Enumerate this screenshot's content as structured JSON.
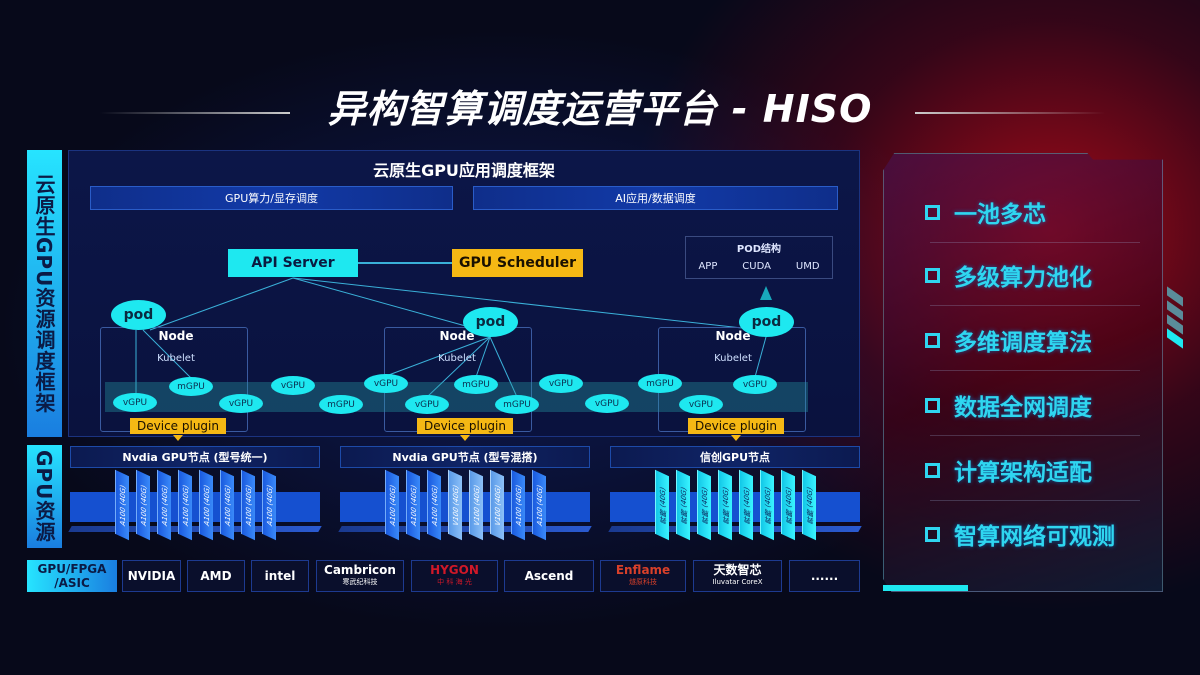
{
  "title": "异构智算调度运营平台 - HISO",
  "side_labels": {
    "framework": "云原生GPU资源调度框架",
    "gpu": "GPU资源",
    "vendor": "GPU/FPGA /ASIC"
  },
  "framework": {
    "title": "云原生GPU应用调度框架",
    "bars": [
      "GPU算力/显存调度",
      "AI应用/数据调度"
    ]
  },
  "diagram": {
    "api_server": "API Server",
    "gpu_scheduler": "GPU Scheduler",
    "pod_structure": {
      "title": "POD结构",
      "items": [
        "APP",
        "CUDA",
        "UMD"
      ]
    },
    "pod": "pod",
    "node": "Node",
    "kubelet": "Kubelet",
    "device_plugin": "Device plugin",
    "gpus": [
      "vGPU",
      "mGPU",
      "vGPU",
      "vGPU",
      "mGPU",
      "vGPU",
      "vGPU",
      "mGPU",
      "mGPU",
      "vGPU",
      "vGPU",
      "mGPU",
      "vGPU",
      "vGPU"
    ]
  },
  "gpu_nodes": [
    {
      "title": "Nvdia GPU节点 (型号统一)",
      "cards": [
        "A100 (40G)",
        "A100 (40G)",
        "A100 (40G)",
        "A100 (40G)",
        "A100 (40G)",
        "A100 (40G)",
        "A100 (40G)",
        "A100 (40G)"
      ]
    },
    {
      "title": "Nvdia GPU节点 (型号混搭)",
      "cards": [
        "A100 (40G)",
        "A100 (40G)",
        "A100 (40G)",
        "V100 (40G)",
        "V100 (40G)",
        "V100 (40G)",
        "A100 (40G)",
        "A100 (40G)"
      ]
    },
    {
      "title": "信创GPU节点",
      "cards": [
        "昇腾 (40G)",
        "昇腾 (40G)",
        "昇腾 (40G)",
        "昇腾 (40G)",
        "昇腾 (40G)",
        "昇腾 (40G)",
        "昇腾 (40G)",
        "昇腾 (40G)"
      ]
    }
  ],
  "vendors": [
    {
      "name": "NVIDIA",
      "sub": ""
    },
    {
      "name": "AMD",
      "sub": ""
    },
    {
      "name": "intel",
      "sub": ""
    },
    {
      "name": "Cambricon",
      "sub": "寒武纪科技"
    },
    {
      "name": "HYGON",
      "sub": "中 科 海 光"
    },
    {
      "name": "Ascend",
      "sub": ""
    },
    {
      "name": "Enflame",
      "sub": "燧原科技"
    },
    {
      "name": "天数智芯",
      "sub": "Iluvatar CoreX"
    },
    {
      "name": "......",
      "sub": ""
    }
  ],
  "features": [
    "一池多芯",
    "多级算力池化",
    "多维调度算法",
    "数据全网调度",
    "计算架构适配",
    "智算网络可观测"
  ],
  "colors": {
    "cyan": "#1ee8f0",
    "yellow": "#f5b814",
    "blue": "#1550d0",
    "red": "#be0a19"
  }
}
